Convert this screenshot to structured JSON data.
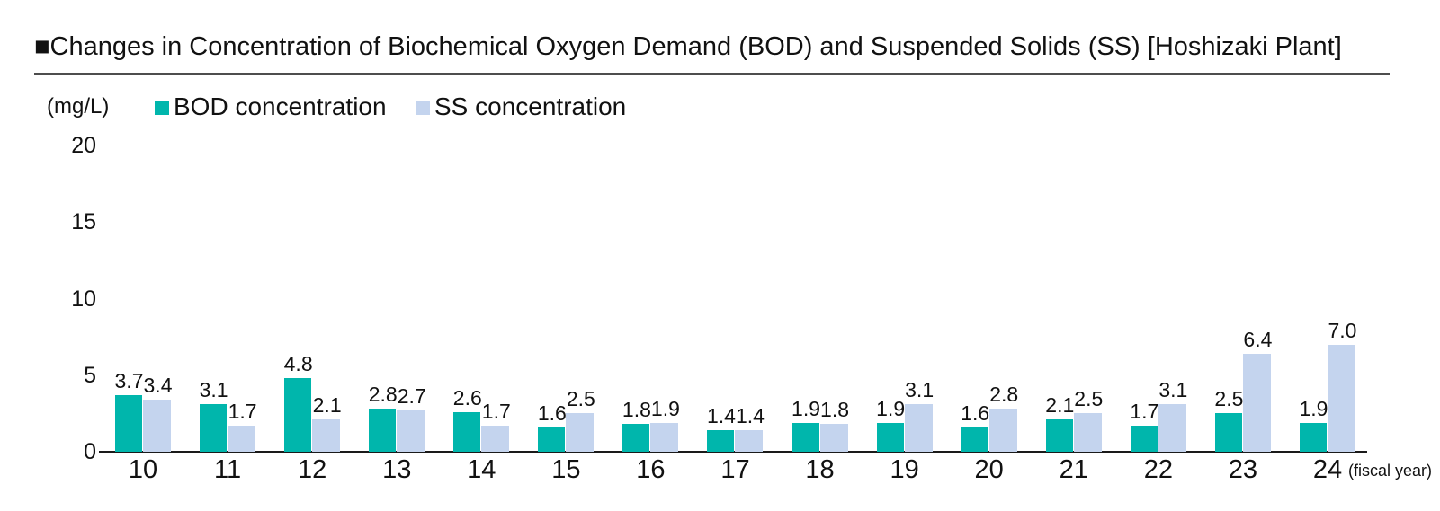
{
  "title": "■Changes in Concentration of Biochemical Oxygen Demand (BOD) and Suspended Solids (SS) [Hoshizaki Plant]",
  "y_axis_unit": "(mg/L)",
  "x_axis_note": "(fiscal year)",
  "legend": [
    {
      "label": "BOD concentration",
      "color": "#00B6AC"
    },
    {
      "label": "SS concentration",
      "color": "#C4D4EE"
    }
  ],
  "chart_data": {
    "type": "bar",
    "title": "Changes in Concentration of Biochemical Oxygen Demand (BOD) and Suspended Solids (SS) [Hoshizaki Plant]",
    "categories": [
      "10",
      "11",
      "12",
      "13",
      "14",
      "15",
      "16",
      "17",
      "18",
      "19",
      "20",
      "21",
      "22",
      "23",
      "24"
    ],
    "series": [
      {
        "name": "BOD concentration",
        "color": "#00B6AC",
        "values": [
          3.7,
          3.1,
          4.8,
          2.8,
          2.6,
          1.6,
          1.8,
          1.4,
          1.9,
          1.9,
          1.6,
          2.1,
          1.7,
          2.5,
          1.9
        ]
      },
      {
        "name": "SS concentration",
        "color": "#C4D4EE",
        "values": [
          3.4,
          1.7,
          2.1,
          2.7,
          1.7,
          2.5,
          1.9,
          1.4,
          1.8,
          3.1,
          2.8,
          2.5,
          3.1,
          6.4,
          7.0
        ]
      }
    ],
    "xlabel": "fiscal year",
    "ylabel": "(mg/L)",
    "ylim": [
      0,
      20
    ],
    "yticks": [
      20,
      15,
      10,
      5,
      0
    ],
    "grid": false,
    "legend_position": "top",
    "data_labels": true,
    "label_decimals": 1
  }
}
